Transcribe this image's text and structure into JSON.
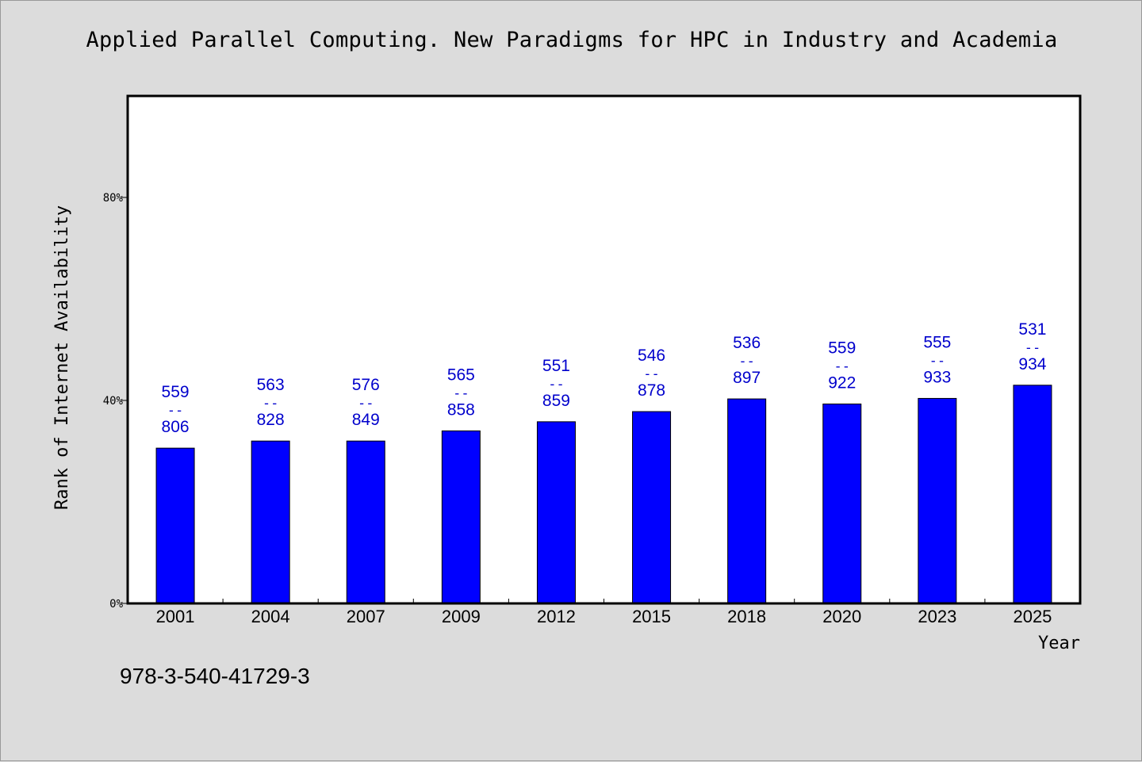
{
  "title": "Applied Parallel Computing. New Paradigms for HPC in Industry and Academia",
  "footnote": "978-3-540-41729-3",
  "chart_data": {
    "type": "bar",
    "title": "Applied Parallel Computing. New Paradigms for HPC in Industry and Academia",
    "xlabel": "Year",
    "ylabel": "Rank of Internet Availability",
    "ylim": [
      0,
      100
    ],
    "yticks": [
      0,
      40,
      80
    ],
    "ytick_labels": [
      "0%",
      "40%",
      "80%"
    ],
    "categories": [
      "2001",
      "2004",
      "2007",
      "2009",
      "2012",
      "2015",
      "2018",
      "2020",
      "2023",
      "2025"
    ],
    "values": [
      30.6,
      32.0,
      32.0,
      34.0,
      35.8,
      37.8,
      40.3,
      39.3,
      40.4,
      43.0
    ],
    "label_top": [
      "559",
      "563",
      "576",
      "565",
      "551",
      "546",
      "536",
      "559",
      "555",
      "531"
    ],
    "label_sep": "--",
    "label_bottom": [
      "806",
      "828",
      "849",
      "858",
      "859",
      "878",
      "897",
      "922",
      "933",
      "934"
    ],
    "bar_color": "#0000ff",
    "label_color": "#0000cc",
    "grid": false,
    "legend": "none"
  }
}
